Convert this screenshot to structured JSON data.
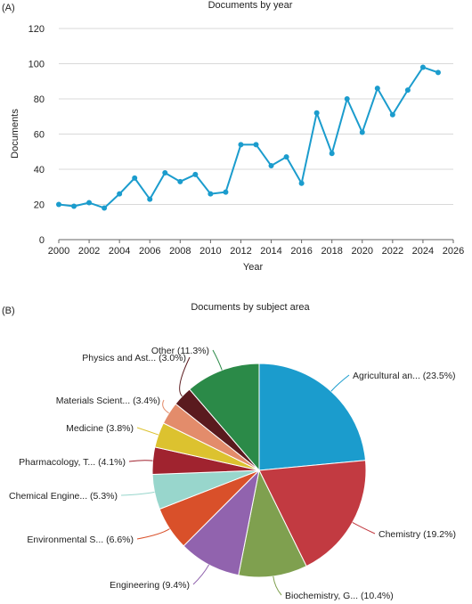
{
  "chart_data": [
    {
      "panel": "(A)",
      "type": "line",
      "title": "Documents by year",
      "xlabel": "Year",
      "ylabel": "Documents",
      "xlim": [
        2000,
        2026
      ],
      "ylim": [
        0,
        120
      ],
      "xticks": [
        "2000",
        "2002",
        "2004",
        "2006",
        "2008",
        "2010",
        "2012",
        "2014",
        "2016",
        "2018",
        "2020",
        "2022",
        "2024",
        "2026"
      ],
      "yticks": [
        "0",
        "20",
        "40",
        "60",
        "80",
        "100",
        "120"
      ],
      "grid": "horizontal",
      "color": "#1b9ccd",
      "x": [
        2000,
        2001,
        2002,
        2003,
        2004,
        2005,
        2006,
        2007,
        2008,
        2009,
        2010,
        2011,
        2012,
        2013,
        2014,
        2015,
        2016,
        2017,
        2018,
        2019,
        2020,
        2021,
        2022,
        2023,
        2024,
        2025
      ],
      "y": [
        20,
        19,
        21,
        18,
        26,
        35,
        23,
        38,
        33,
        37,
        26,
        27,
        54,
        54,
        42,
        47,
        32,
        72,
        49,
        80,
        61,
        86,
        71,
        85,
        98,
        95
      ]
    },
    {
      "panel": "(B)",
      "type": "pie",
      "title": "Documents by subject area",
      "slices": [
        {
          "label": "Agricultural an... (23.5%)",
          "value": 23.5,
          "color": "#1b9ccd"
        },
        {
          "label": "Chemistry (19.2%)",
          "value": 19.2,
          "color": "#c23a41"
        },
        {
          "label": "Biochemistry, G... (10.4%)",
          "value": 10.4,
          "color": "#7fa04f"
        },
        {
          "label": "Engineering (9.4%)",
          "value": 9.4,
          "color": "#9163ae"
        },
        {
          "label": "Environmental S... (6.6%)",
          "value": 6.6,
          "color": "#d9502a"
        },
        {
          "label": "Chemical Engine... (5.3%)",
          "value": 5.3,
          "color": "#98d6cc"
        },
        {
          "label": "Pharmacology, T... (4.1%)",
          "value": 4.1,
          "color": "#a0232f"
        },
        {
          "label": "Medicine (3.8%)",
          "value": 3.8,
          "color": "#dcc22f"
        },
        {
          "label": "Materials Scient... (3.4%)",
          "value": 3.4,
          "color": "#e38c6b"
        },
        {
          "label": "Physics and Ast... (3.0%)",
          "value": 3.0,
          "color": "#5a1a1e"
        },
        {
          "label": "Other (11.3%)",
          "value": 11.3,
          "color": "#2b8a48"
        }
      ]
    }
  ]
}
